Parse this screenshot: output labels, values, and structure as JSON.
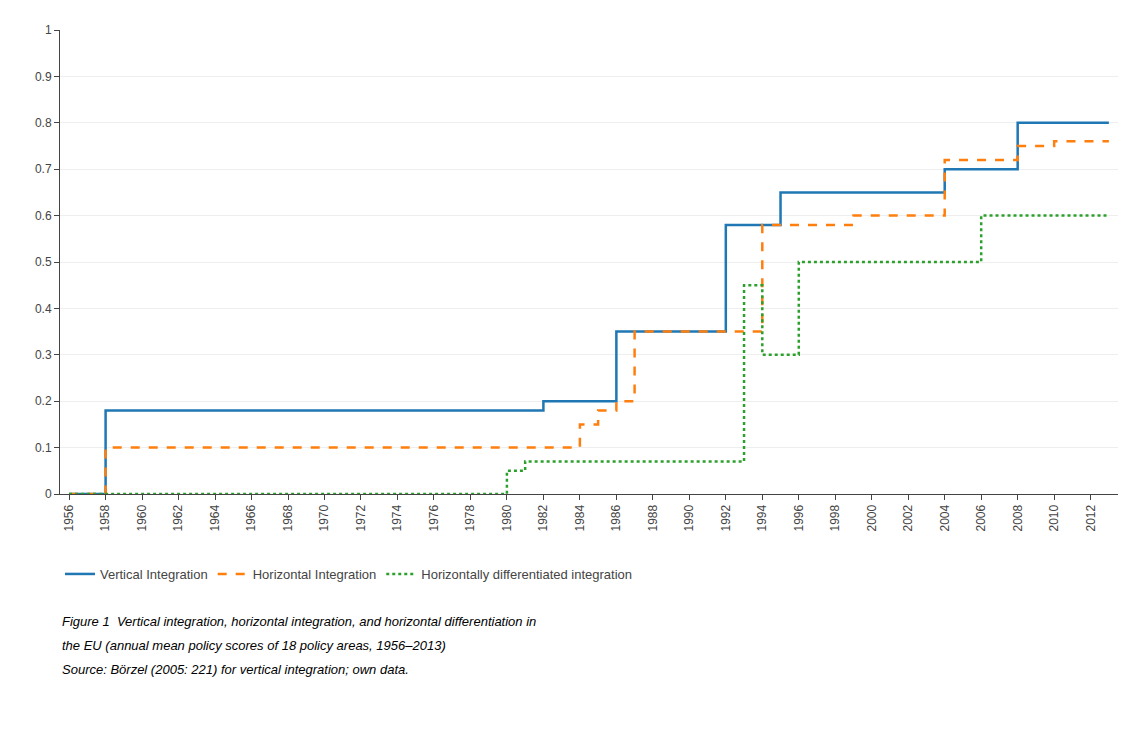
{
  "chart_data": {
    "type": "line",
    "x": [
      1956,
      1957,
      1958,
      1959,
      1960,
      1961,
      1962,
      1963,
      1964,
      1965,
      1966,
      1967,
      1968,
      1969,
      1970,
      1971,
      1972,
      1973,
      1974,
      1975,
      1976,
      1977,
      1978,
      1979,
      1980,
      1981,
      1982,
      1983,
      1984,
      1985,
      1986,
      1987,
      1988,
      1989,
      1990,
      1991,
      1992,
      1993,
      1994,
      1995,
      1996,
      1997,
      1998,
      1999,
      2000,
      2001,
      2002,
      2003,
      2004,
      2005,
      2006,
      2007,
      2008,
      2009,
      2010,
      2011,
      2012,
      2013
    ],
    "series": [
      {
        "name": "Vertical Integration",
        "line_style": "solid",
        "values": [
          0.0,
          0.0,
          0.18,
          0.18,
          0.18,
          0.18,
          0.18,
          0.18,
          0.18,
          0.18,
          0.18,
          0.18,
          0.18,
          0.18,
          0.18,
          0.18,
          0.18,
          0.18,
          0.18,
          0.18,
          0.18,
          0.18,
          0.18,
          0.18,
          0.18,
          0.18,
          0.2,
          0.2,
          0.2,
          0.2,
          0.35,
          0.35,
          0.35,
          0.35,
          0.35,
          0.35,
          0.58,
          0.58,
          0.58,
          0.65,
          0.65,
          0.65,
          0.65,
          0.65,
          0.65,
          0.65,
          0.65,
          0.65,
          0.7,
          0.7,
          0.7,
          0.7,
          0.8,
          0.8,
          0.8,
          0.8,
          0.8,
          0.8
        ]
      },
      {
        "name": "Horizontal Integration",
        "line_style": "dash",
        "values": [
          0.0,
          0.0,
          0.1,
          0.1,
          0.1,
          0.1,
          0.1,
          0.1,
          0.1,
          0.1,
          0.1,
          0.1,
          0.1,
          0.1,
          0.1,
          0.1,
          0.1,
          0.1,
          0.1,
          0.1,
          0.1,
          0.1,
          0.1,
          0.1,
          0.1,
          0.1,
          0.1,
          0.1,
          0.15,
          0.18,
          0.2,
          0.35,
          0.35,
          0.35,
          0.35,
          0.35,
          0.35,
          0.35,
          0.58,
          0.58,
          0.58,
          0.58,
          0.58,
          0.6,
          0.6,
          0.6,
          0.6,
          0.6,
          0.72,
          0.72,
          0.72,
          0.72,
          0.75,
          0.75,
          0.76,
          0.76,
          0.76,
          0.76
        ]
      },
      {
        "name": "Horizontally differentiated integration",
        "line_style": "dot",
        "values": [
          0.0,
          0.0,
          0.0,
          0.0,
          0.0,
          0.0,
          0.0,
          0.0,
          0.0,
          0.0,
          0.0,
          0.0,
          0.0,
          0.0,
          0.0,
          0.0,
          0.0,
          0.0,
          0.0,
          0.0,
          0.0,
          0.0,
          0.0,
          0.0,
          0.05,
          0.07,
          0.07,
          0.07,
          0.07,
          0.07,
          0.07,
          0.07,
          0.07,
          0.07,
          0.07,
          0.07,
          0.07,
          0.45,
          0.3,
          0.3,
          0.5,
          0.5,
          0.5,
          0.5,
          0.5,
          0.5,
          0.5,
          0.5,
          0.5,
          0.5,
          0.6,
          0.6,
          0.6,
          0.6,
          0.6,
          0.6,
          0.6,
          0.6
        ]
      }
    ],
    "xlim": [
      1955.5,
      2013.5
    ],
    "xticks": [
      1956,
      1958,
      1960,
      1962,
      1964,
      1966,
      1968,
      1970,
      1972,
      1974,
      1976,
      1978,
      1980,
      1982,
      1984,
      1986,
      1988,
      1990,
      1992,
      1994,
      1996,
      1998,
      2000,
      2002,
      2004,
      2006,
      2008,
      2010,
      2012
    ],
    "ylim": [
      0,
      1.0
    ],
    "yticks": [
      0,
      0.1,
      0.2,
      0.3,
      0.4,
      0.5,
      0.6,
      0.7,
      0.8,
      0.9,
      1
    ],
    "grid": "y",
    "legend": "bottom",
    "annotations": [
      "Figure 1  Vertical integration, horizontal integration, and horizontal differentiation in",
      "the EU (annual mean policy scores of 18 policy areas, 1956–2013)",
      "Source: Börzel (2005: 221) for vertical integration; own data."
    ]
  }
}
